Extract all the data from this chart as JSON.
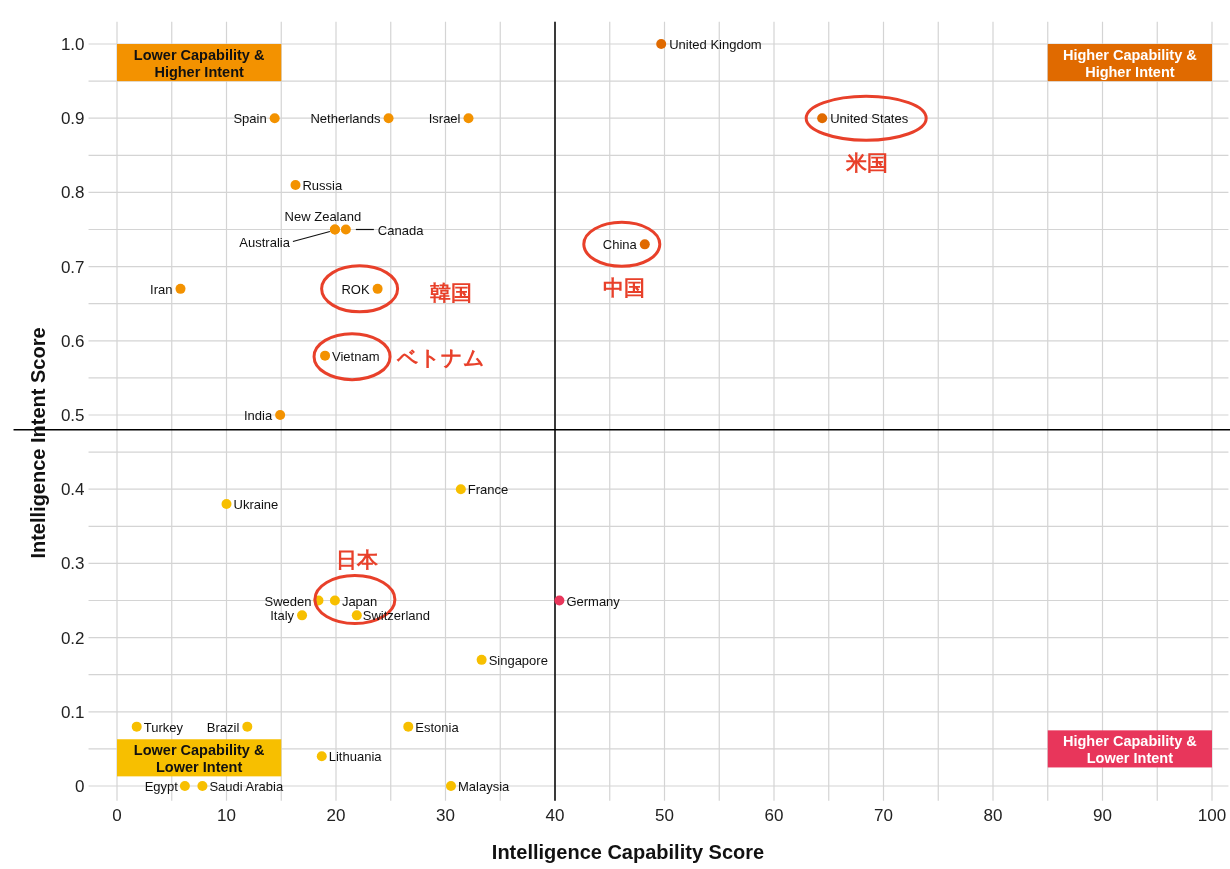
{
  "chart_data": {
    "type": "scatter",
    "xlabel": "Intelligence Capability Score",
    "ylabel": "Intelligence Intent Score",
    "xlim": [
      -2.6,
      101.5
    ],
    "ylim": [
      -0.02,
      1.03
    ],
    "xticks": [
      0,
      {
        "value": 5,
        "label": null
      },
      10,
      {
        "value": 15,
        "label": null
      },
      20,
      {
        "value": 25,
        "label": null
      },
      30,
      {
        "value": 35,
        "label": null
      },
      40,
      {
        "value": 45,
        "label": null
      },
      50,
      {
        "value": 55,
        "label": null
      },
      60,
      {
        "value": 65,
        "label": null
      },
      70,
      {
        "value": 75,
        "label": null
      },
      80,
      {
        "value": 85,
        "label": null
      },
      90,
      {
        "value": 95,
        "label": null
      },
      100
    ],
    "yticks": [
      0,
      {
        "value": 0.05,
        "label": null
      },
      0.1,
      {
        "value": 0.15,
        "label": null
      },
      0.2,
      {
        "value": 0.25,
        "label": null
      },
      0.3,
      {
        "value": 0.35,
        "label": null
      },
      0.4,
      {
        "value": 0.45,
        "label": null
      },
      0.5,
      {
        "value": 0.55,
        "label": null
      },
      0.6,
      {
        "value": 0.65,
        "label": null
      },
      0.7,
      {
        "value": 0.75,
        "label": null
      },
      0.8,
      {
        "value": 0.85,
        "label": null
      },
      0.9,
      {
        "value": 0.95,
        "label": null
      },
      {
        "value": 1.0,
        "label": "1.0"
      }
    ],
    "grid": true,
    "marker": "circle",
    "ref_lines": [
      {
        "axis": "x",
        "value": 40,
        "color": "#000000"
      },
      {
        "axis": "y",
        "value": 0.48,
        "color": "#000000"
      }
    ],
    "series": [
      {
        "name": "Lower Capability & Higher Intent",
        "color": "#f39200",
        "x": [
          14.4,
          24.8,
          32.1,
          16.3,
          19.9,
          20.9,
          5.8,
          23.8,
          19.0,
          14.9,
          19.9
        ],
        "values": [
          0.9,
          0.9,
          0.9,
          0.81,
          0.75,
          0.75,
          0.67,
          0.67,
          0.58,
          0.5,
          0.75
        ]
      },
      {
        "name": "Higher Capability & Higher Intent",
        "color": "#e06a00",
        "x": [
          49.7,
          64.4,
          48.2
        ],
        "values": [
          1.0,
          0.9,
          0.73
        ]
      },
      {
        "name": "Lower Capability & Lower Intent",
        "color": "#f7bf00",
        "x": [
          31.4,
          10.0,
          18.4,
          19.9,
          16.9,
          21.9,
          33.3,
          1.8,
          11.9,
          26.6,
          18.7,
          6.2,
          7.8,
          30.5
        ],
        "values": [
          0.4,
          0.38,
          0.25,
          0.25,
          0.23,
          0.23,
          0.17,
          0.08,
          0.08,
          0.08,
          0.04,
          0,
          0,
          0
        ]
      },
      {
        "name": "Higher Capability & Lower Intent",
        "color": "#e8365b",
        "x": [
          40.4
        ],
        "values": [
          0.25
        ]
      }
    ],
    "annotations": [
      {
        "text": "Spain",
        "x": 14.4,
        "y": 0.9
      },
      {
        "text": "Netherlands",
        "x": 24.8,
        "y": 0.9
      },
      {
        "text": "Israel",
        "x": 32.1,
        "y": 0.9
      },
      {
        "text": "Russia",
        "x": 16.3,
        "y": 0.81
      },
      {
        "text": "New Zealand",
        "x": 19.9,
        "y": 0.75
      },
      {
        "text": "Canada",
        "x": 20.9,
        "y": 0.75
      },
      {
        "text": "Iran",
        "x": 5.8,
        "y": 0.67
      },
      {
        "text": "ROK",
        "x": 23.8,
        "y": 0.67
      },
      {
        "text": "Vietnam",
        "x": 19.0,
        "y": 0.58
      },
      {
        "text": "India",
        "x": 14.9,
        "y": 0.5
      },
      {
        "text": "Australia",
        "x": 19.9,
        "y": 0.75
      },
      {
        "text": "United Kingdom",
        "x": 49.7,
        "y": 1.0
      },
      {
        "text": "United States",
        "x": 64.4,
        "y": 0.9
      },
      {
        "text": "China",
        "x": 48.2,
        "y": 0.73
      },
      {
        "text": "France",
        "x": 31.4,
        "y": 0.4
      },
      {
        "text": "Ukraine",
        "x": 10.0,
        "y": 0.38
      },
      {
        "text": "Sweden",
        "x": 18.4,
        "y": 0.25
      },
      {
        "text": "Japan",
        "x": 19.9,
        "y": 0.25
      },
      {
        "text": "Italy",
        "x": 16.9,
        "y": 0.23
      },
      {
        "text": "Switzerland",
        "x": 21.9,
        "y": 0.23
      },
      {
        "text": "Singapore",
        "x": 33.3,
        "y": 0.17
      },
      {
        "text": "Turkey",
        "x": 1.8,
        "y": 0.08
      },
      {
        "text": "Brazil",
        "x": 11.9,
        "y": 0.08
      },
      {
        "text": "Estonia",
        "x": 26.6,
        "y": 0.08
      },
      {
        "text": "Lithuania",
        "x": 18.7,
        "y": 0.04
      },
      {
        "text": "Egypt",
        "x": 6.2,
        "y": 0
      },
      {
        "text": "Saudi Arabia",
        "x": 7.8,
        "y": 0
      },
      {
        "text": "Malaysia",
        "x": 30.5,
        "y": 0
      },
      {
        "text": "Germany",
        "x": 40.4,
        "y": 0.25
      },
      {
        "text": "韓国",
        "x": 23.8,
        "y": 0.67
      },
      "ベトナム",
      {
        "text": "中国",
        "x": 48.2,
        "y": 0.73
      },
      {
        "text": "米国",
        "x": 64.4,
        "y": 0.9
      },
      {
        "text": "日本",
        "x": 19.9,
        "y": 0.25
      }
    ]
  }
}
